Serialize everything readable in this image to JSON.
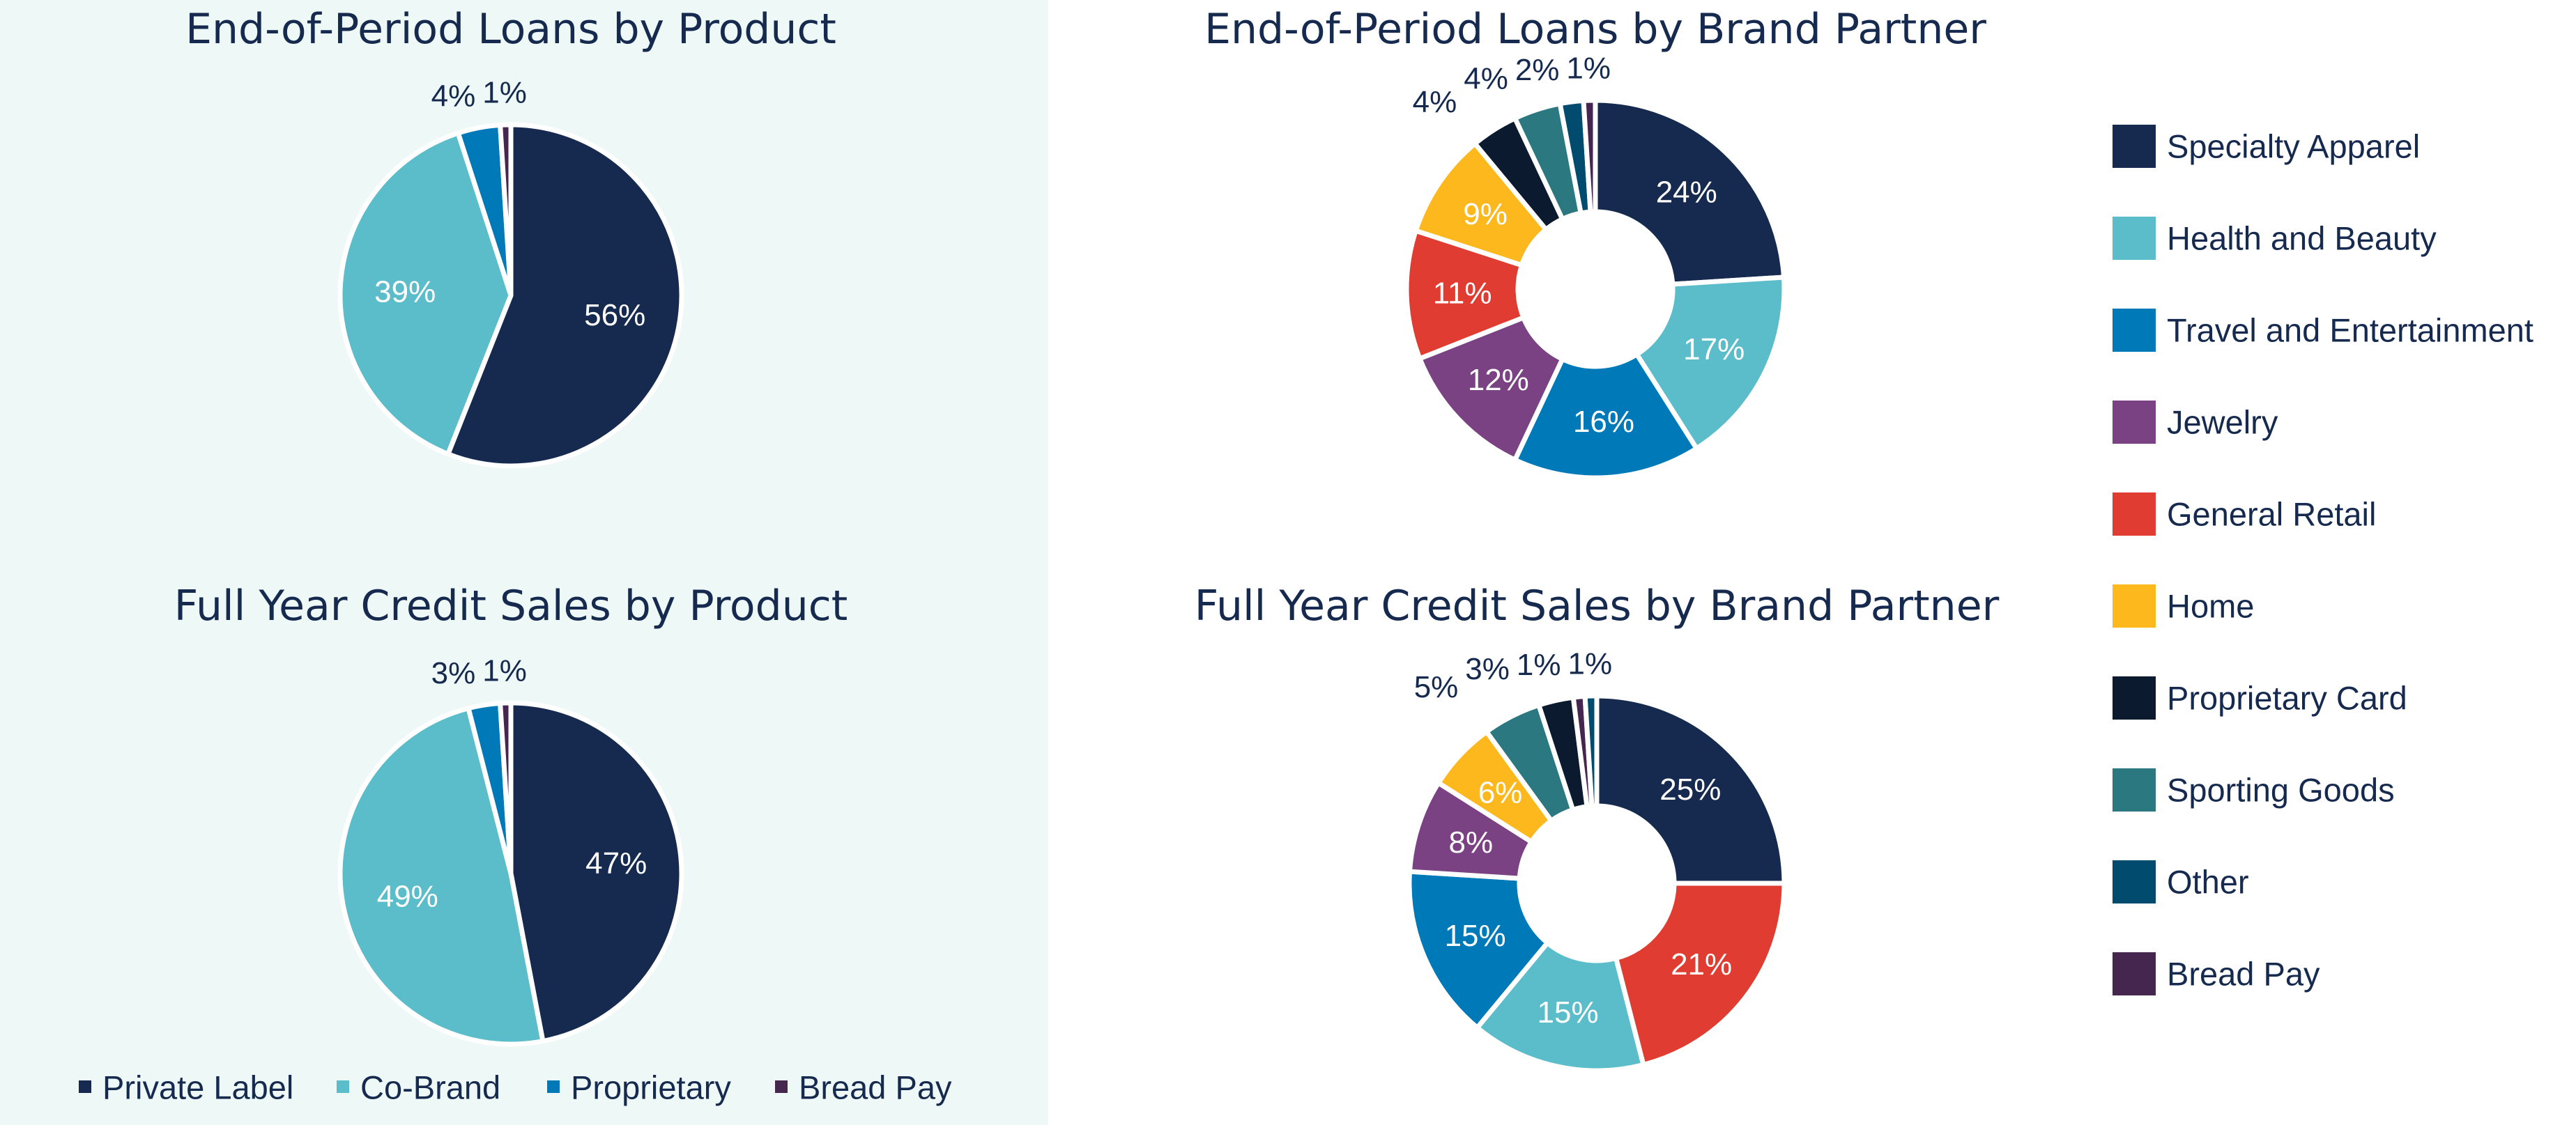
{
  "colors": {
    "Private Label": "#152a4e",
    "Co-Brand": "#5bbdc9",
    "Proprietary": "#0079b8",
    "Bread Pay": "#45264f",
    "Specialty Apparel": "#152a4e",
    "Health and Beauty": "#5bbdc9",
    "Travel and Entertainment": "#0079b8",
    "Jewelry": "#7a4283",
    "General Retail": "#e03c31",
    "Home": "#fdb81e",
    "Proprietary Card": "#0b1a2e",
    "Sporting Goods": "#2b7880",
    "Other": "#004b6e"
  },
  "product_legend": [
    "Private Label",
    "Co-Brand",
    "Proprietary",
    "Bread Pay"
  ],
  "partner_legend": [
    "Specialty Apparel",
    "Health and Beauty",
    "Travel and Entertainment",
    "Jewelry",
    "General Retail",
    "Home",
    "Proprietary Card",
    "Sporting Goods",
    "Other",
    "Bread Pay"
  ],
  "chart_data": [
    {
      "type": "pie",
      "title": "End-of-Period Loans by Product",
      "categories": [
        "Private Label",
        "Co-Brand",
        "Proprietary",
        "Bread Pay"
      ],
      "values": [
        56,
        39,
        4,
        1
      ],
      "labels": [
        "56%",
        "39%",
        "4%",
        "1%"
      ]
    },
    {
      "type": "pie",
      "title": "Full Year Credit Sales by Product",
      "categories": [
        "Private Label",
        "Co-Brand",
        "Proprietary",
        "Bread Pay"
      ],
      "values": [
        47,
        49,
        3,
        1
      ],
      "labels": [
        "47%",
        "49%",
        "3%",
        "1%"
      ]
    },
    {
      "type": "donut",
      "title": "End-of-Period Loans by Brand Partner",
      "categories": [
        "Specialty Apparel",
        "Health and Beauty",
        "Travel and Entertainment",
        "Jewelry",
        "General Retail",
        "Home",
        "Proprietary Card",
        "Sporting Goods",
        "Other",
        "Bread Pay"
      ],
      "values": [
        24,
        17,
        16,
        12,
        11,
        9,
        4,
        4,
        2,
        1
      ],
      "labels": [
        "24%",
        "17%",
        "16%",
        "12%",
        "11%",
        "9%",
        "4%",
        "4%",
        "2%",
        "1%"
      ]
    },
    {
      "type": "donut",
      "title": "Full Year Credit Sales by Brand Partner",
      "categories": [
        "Specialty Apparel",
        "General Retail",
        "Health and Beauty",
        "Travel and Entertainment",
        "Jewelry",
        "Home",
        "Sporting Goods",
        "Proprietary Card",
        "Bread Pay",
        "Other"
      ],
      "values": [
        25,
        21,
        15,
        15,
        8,
        6,
        5,
        3,
        1,
        1
      ],
      "labels": [
        "25%",
        "21%",
        "15%",
        "15%",
        "8%",
        "6%",
        "5%",
        "3%",
        "1%",
        "1%"
      ]
    }
  ]
}
